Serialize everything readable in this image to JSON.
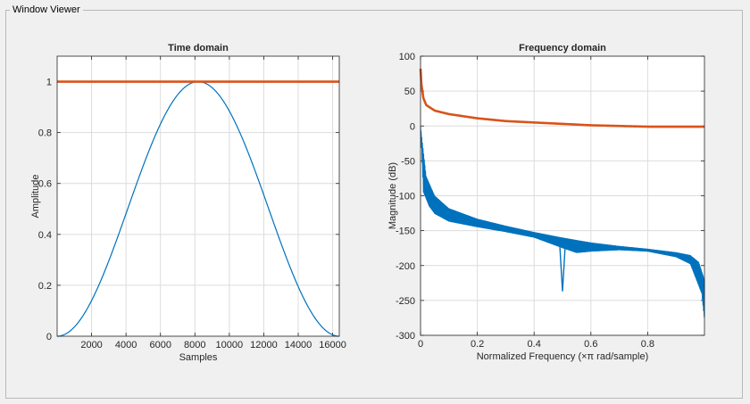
{
  "panel": {
    "title": "Window Viewer"
  },
  "colors": {
    "blue": "#0072BD",
    "orange": "#D95319",
    "grid": "#dcdcdc",
    "axes": "#262626"
  },
  "chart_data": [
    {
      "type": "line",
      "title": "Time domain",
      "xlabel": "Samples",
      "ylabel": "Amplitude",
      "xlim": [
        0,
        16385
      ],
      "ylim": [
        0,
        1.1
      ],
      "xticks": [
        2000,
        4000,
        6000,
        8000,
        10000,
        12000,
        14000,
        16000
      ],
      "xtick_labels": [
        "2000",
        "4000",
        "6000",
        "8000",
        "10000",
        "12000",
        "14000",
        "16000"
      ],
      "yticks": [
        0,
        0.2,
        0.4,
        0.6,
        0.8,
        1
      ],
      "ytick_labels": [
        "0",
        "0.2",
        "0.4",
        "0.6",
        "0.8",
        "1"
      ],
      "grid": true,
      "series": [
        {
          "color": "blue",
          "shape": "hann",
          "N": 16384,
          "peak": 1
        },
        {
          "color": "orange",
          "shape": "rectangular",
          "value": 1
        }
      ]
    },
    {
      "type": "line",
      "title": "Frequency domain",
      "xlabel": "Normalized Frequency  (×π rad/sample)",
      "ylabel": "Magnitude (dB)",
      "xlim": [
        0,
        1
      ],
      "ylim": [
        -300,
        100
      ],
      "xticks": [
        0,
        0.2,
        0.4,
        0.6,
        0.8
      ],
      "xtick_labels": [
        "0",
        "0.2",
        "0.4",
        "0.6",
        "0.8"
      ],
      "yticks": [
        100,
        50,
        0,
        -50,
        -100,
        -150,
        -200,
        -250,
        -300
      ],
      "ytick_labels": [
        "100",
        "50",
        "0",
        "-50",
        "-100",
        "-150",
        "-200",
        "-250",
        "-300"
      ],
      "grid": true,
      "series": [
        {
          "color": "blue",
          "shape": "hann-spectrum",
          "upper": [
            [
              0.0,
              0
            ],
            [
              0.02,
              -72
            ],
            [
              0.05,
              -100
            ],
            [
              0.1,
              -118
            ],
            [
              0.2,
              -133
            ],
            [
              0.3,
              -143
            ],
            [
              0.4,
              -152
            ],
            [
              0.5,
              -160
            ],
            [
              0.6,
              -167
            ],
            [
              0.7,
              -172
            ],
            [
              0.8,
              -176
            ],
            [
              0.9,
              -181
            ],
            [
              0.95,
              -185
            ],
            [
              0.98,
              -195
            ],
            [
              1.0,
              -220
            ]
          ],
          "lower": [
            [
              0.0,
              0
            ],
            [
              0.01,
              -95
            ],
            [
              0.03,
              -115
            ],
            [
              0.05,
              -126
            ],
            [
              0.1,
              -137
            ],
            [
              0.2,
              -145
            ],
            [
              0.3,
              -152
            ],
            [
              0.4,
              -160
            ],
            [
              0.5,
              -175
            ],
            [
              0.55,
              -182
            ],
            [
              0.6,
              -180
            ],
            [
              0.7,
              -178
            ],
            [
              0.8,
              -180
            ],
            [
              0.9,
              -188
            ],
            [
              0.95,
              -198
            ],
            [
              0.99,
              -240
            ],
            [
              1.0,
              -278
            ]
          ],
          "notch": {
            "x": 0.5,
            "y": -237
          }
        },
        {
          "color": "orange",
          "shape": "rect-spectrum",
          "points": [
            [
              0.0,
              82
            ],
            [
              0.003,
              60
            ],
            [
              0.01,
              40
            ],
            [
              0.02,
              30
            ],
            [
              0.05,
              22
            ],
            [
              0.1,
              17
            ],
            [
              0.2,
              11
            ],
            [
              0.3,
              7
            ],
            [
              0.4,
              5
            ],
            [
              0.5,
              3
            ],
            [
              0.6,
              1
            ],
            [
              0.7,
              0
            ],
            [
              0.8,
              -1
            ],
            [
              0.9,
              -1
            ],
            [
              1.0,
              -1
            ]
          ]
        }
      ]
    }
  ]
}
